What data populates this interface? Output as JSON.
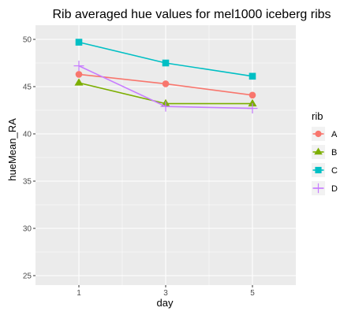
{
  "chart_data": {
    "type": "line",
    "title": "Rib averaged hue values for mel1000 iceberg ribs",
    "xlabel": "day",
    "ylabel": "hueMean_RA",
    "x": [
      1,
      3,
      5
    ],
    "x_tick_labels": [
      "1",
      "3",
      "5"
    ],
    "xlim": [
      0,
      6
    ],
    "ylim": [
      24,
      51.5
    ],
    "y_ticks": [
      25,
      30,
      35,
      40,
      45,
      50
    ],
    "y_tick_labels": [
      "25",
      "30",
      "35",
      "40",
      "45",
      "50"
    ],
    "grid": true,
    "legend": {
      "title": "rib",
      "position": "right"
    },
    "series": [
      {
        "name": "A",
        "values": [
          46.3,
          45.3,
          44.1
        ],
        "color": "#f8766d",
        "marker": "circle"
      },
      {
        "name": "B",
        "values": [
          45.4,
          43.2,
          43.2
        ],
        "color": "#7cae00",
        "marker": "triangle"
      },
      {
        "name": "C",
        "values": [
          49.7,
          47.5,
          46.1
        ],
        "color": "#00bfc4",
        "marker": "square"
      },
      {
        "name": "D",
        "values": [
          47.2,
          42.9,
          42.7
        ],
        "color": "#c77cff",
        "marker": "plus"
      }
    ],
    "panel_background": "#ebebeb",
    "grid_color": "#ffffff"
  }
}
